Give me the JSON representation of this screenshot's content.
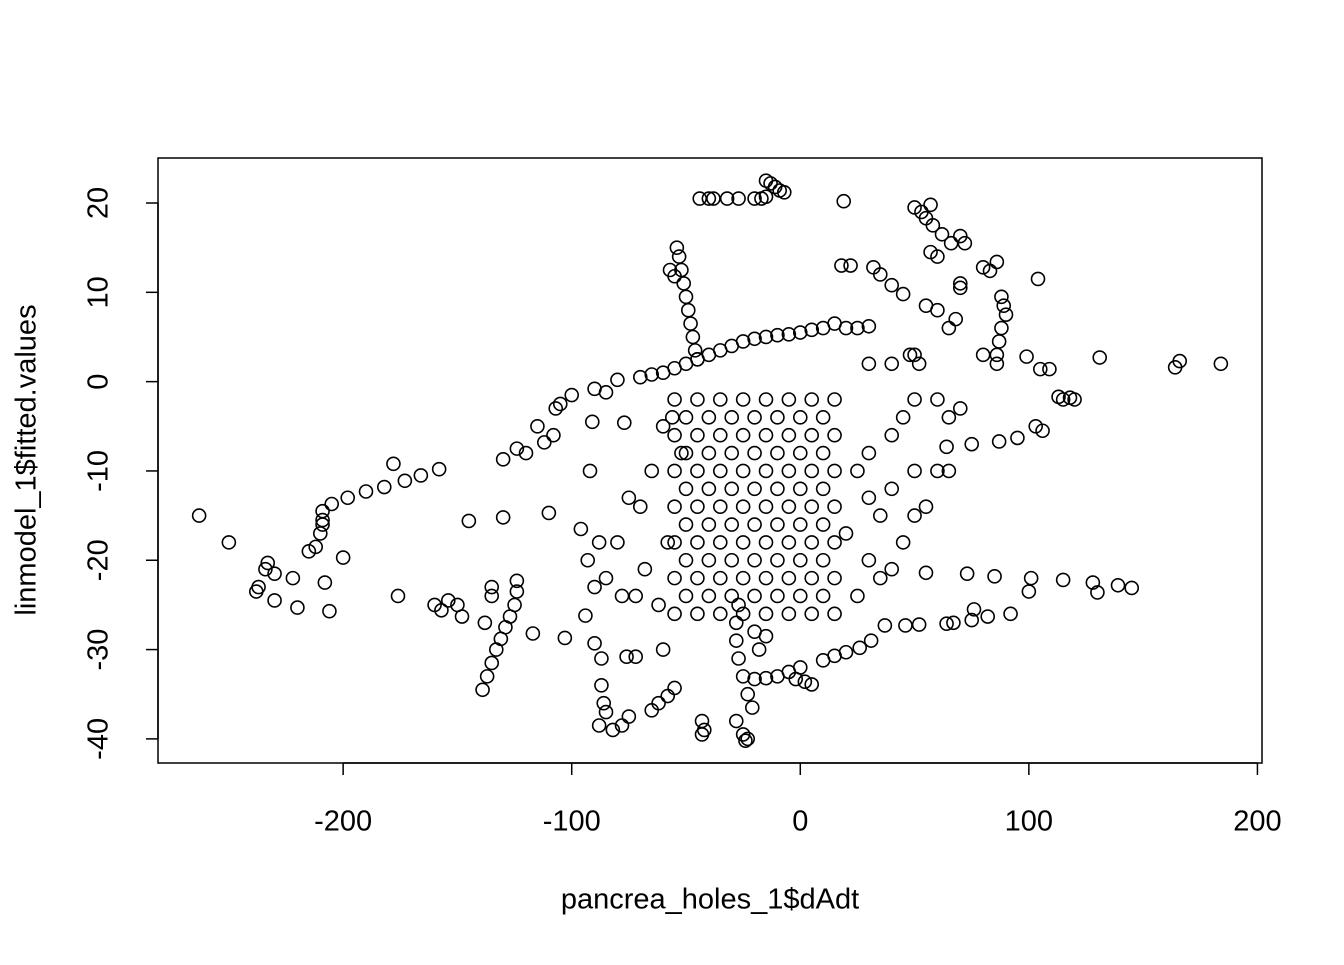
{
  "chart_data": {
    "type": "scatter",
    "x_label": "pancrea_holes_1$dAdt",
    "y_label": "linmodel_1$fitted.values",
    "xlim": [
      -281,
      202
    ],
    "ylim": [
      -42.7,
      25.04
    ],
    "xticks": [
      -200,
      -100,
      0,
      100,
      200
    ],
    "yticks": [
      -40,
      -30,
      -20,
      -10,
      0,
      10,
      20
    ],
    "color": "#000000",
    "x": [
      -263,
      -250,
      -238,
      -237,
      -233,
      -234,
      -230,
      -230,
      -222,
      -220,
      -215,
      -212,
      -210,
      -209,
      -209,
      -209,
      -208,
      -206,
      -205,
      -200,
      -198,
      -190,
      -182,
      -178,
      -176,
      -173,
      -166,
      -160,
      -157,
      -158,
      -154,
      -150,
      -148,
      -145,
      -138,
      -139,
      -137,
      -135,
      -133,
      -131,
      -129,
      -127,
      -125,
      -124,
      -124,
      -135,
      -135,
      -130,
      -130,
      -124,
      -120,
      -117,
      -115,
      -112,
      -110,
      -108,
      -107,
      -105,
      -103,
      -100,
      -96,
      -94,
      -93,
      -92,
      -91,
      -90,
      -88,
      -87,
      -87,
      -86,
      -85,
      -82,
      -78,
      -75,
      -77,
      -76,
      -72,
      -70,
      -65,
      -62,
      -58,
      -55,
      -80,
      -90,
      -85,
      -54,
      -53,
      -52,
      -51,
      -50,
      -49,
      -48,
      -47,
      -46,
      -45,
      -57,
      -55,
      -44,
      -40,
      -38,
      -32,
      -27,
      -20,
      -17,
      -15,
      -15,
      -13,
      -11,
      -9,
      -7,
      19,
      50,
      53,
      55,
      57,
      58,
      62,
      66,
      70,
      72,
      57,
      60,
      80,
      83,
      86,
      104,
      70,
      70,
      88,
      89,
      90,
      88,
      87,
      86,
      86,
      99,
      105,
      109,
      131,
      164,
      166,
      184,
      113,
      115,
      118,
      120,
      103,
      106,
      95,
      87,
      75,
      64,
      80,
      65,
      68,
      60,
      55,
      45,
      40,
      35,
      32,
      22,
      18,
      30,
      25,
      20,
      15,
      10,
      5,
      0,
      -5,
      -10,
      -15,
      -20,
      -25,
      -30,
      -35,
      -40,
      -45,
      -50,
      -55,
      -60,
      -65,
      55,
      73,
      85,
      101,
      115,
      128,
      130,
      139,
      145,
      100,
      92,
      82,
      76,
      75,
      67,
      64,
      52,
      46,
      37,
      31,
      26,
      20,
      15,
      10,
      5,
      2,
      -2,
      0,
      -5,
      -10,
      -15,
      -20,
      -43,
      -42,
      -43,
      -25,
      -24,
      -23,
      -28,
      -21,
      -23,
      -25,
      -27,
      -28,
      -28,
      -27,
      -20,
      -18,
      -15,
      30,
      35,
      40,
      45,
      50,
      55,
      25,
      30,
      40,
      45,
      50,
      60,
      65,
      70,
      35,
      20,
      25,
      30,
      40,
      50,
      60,
      65,
      30,
      40,
      50,
      52,
      48,
      -60,
      -65,
      -70,
      -75,
      -78,
      -72,
      -68,
      -80,
      -85,
      -88,
      -90,
      -62,
      -60,
      -56,
      -52,
      -58,
      -55,
      -45,
      -35,
      -25,
      -15,
      -5,
      5,
      15,
      -55,
      -45,
      -35,
      -25,
      -15,
      -5,
      5,
      15,
      -55,
      -45,
      -35,
      -25,
      -15,
      -5,
      5,
      15,
      -55,
      -45,
      -35,
      -25,
      -15,
      -5,
      5,
      15,
      -55,
      -45,
      -35,
      -25,
      -15,
      -5,
      5,
      15,
      -55,
      -45,
      -35,
      -25,
      -15,
      -5,
      5,
      15,
      -55,
      -45,
      -35,
      -25,
      -15,
      -5,
      5,
      15,
      -50,
      -40,
      -30,
      -20,
      -10,
      0,
      10,
      -50,
      -40,
      -30,
      -20,
      -10,
      0,
      10,
      -50,
      -40,
      -30,
      -20,
      -10,
      0,
      10,
      -50,
      -40,
      -30,
      -20,
      -10,
      0,
      10,
      -50,
      -40,
      -30,
      -20,
      -10,
      0,
      10,
      -50,
      -40,
      -30,
      -20,
      -10,
      0,
      10
    ],
    "values": [
      -15,
      -18,
      -23.5,
      -23,
      -20.3,
      -21,
      -21.5,
      -24.5,
      -22,
      -25.3,
      -19,
      -18.5,
      -17,
      -16,
      -15.5,
      -14.5,
      -22.5,
      -25.7,
      -13.7,
      -19.7,
      -13,
      -12.3,
      -11.8,
      -9.2,
      -24,
      -11.1,
      -10.5,
      -25,
      -25.6,
      -9.8,
      -24.5,
      -25,
      -26.3,
      -15.6,
      -27,
      -34.5,
      -33,
      -31.5,
      -30,
      -28.8,
      -27.5,
      -26.3,
      -25,
      -23.5,
      -22.3,
      -23,
      -24,
      -8.7,
      -15.2,
      -7.5,
      -8,
      -28.2,
      -5,
      -6.8,
      -14.7,
      -6,
      -3,
      -2.5,
      -28.7,
      -1.5,
      -16.5,
      -26.2,
      -20,
      -10,
      -4.5,
      -29.3,
      -38.5,
      -31,
      -34,
      -36,
      -37,
      -39,
      -38.5,
      -37.5,
      -4.6,
      -30.8,
      -30.8,
      0.5,
      -36.8,
      -36,
      -35.2,
      -34.3,
      0.2,
      -0.8,
      -1.2,
      15,
      14,
      12.5,
      11,
      9.5,
      8,
      6.5,
      5,
      3.5,
      2.5,
      12.5,
      11.8,
      20.5,
      20.5,
      20.5,
      20.5,
      20.5,
      20.5,
      20.5,
      20.7,
      22.5,
      22.2,
      21.8,
      21.4,
      21.2,
      20.2,
      19.5,
      19,
      18.3,
      19.8,
      17.5,
      16.5,
      15.5,
      16.3,
      15.5,
      14.5,
      14,
      12.8,
      12.4,
      13.4,
      11.5,
      11,
      10.5,
      9.5,
      8.5,
      7.5,
      6,
      4.5,
      3,
      2,
      2.8,
      1.4,
      1.4,
      2.7,
      1.6,
      2.3,
      2,
      -1.7,
      -2,
      -1.8,
      -2,
      -5,
      -5.5,
      -6.3,
      -6.7,
      -7,
      -7.3,
      3,
      6,
      7,
      8,
      8.5,
      9.8,
      10.8,
      12,
      12.8,
      13,
      13,
      6.2,
      6,
      6,
      6.5,
      6,
      5.8,
      5.5,
      5.3,
      5.2,
      5,
      4.8,
      4.5,
      4,
      3.5,
      3,
      2.5,
      2,
      1.5,
      1,
      0.8,
      -21.4,
      -21.5,
      -21.8,
      -22,
      -22.2,
      -22.5,
      -23.6,
      -22.8,
      -23.1,
      -23.5,
      -26,
      -26.3,
      -25.5,
      -26.7,
      -27,
      -27.1,
      -27.2,
      -27.3,
      -27.3,
      -29,
      -29.8,
      -30.3,
      -30.7,
      -31.2,
      -33.9,
      -33.6,
      -33.3,
      -32,
      -32.5,
      -33,
      -33.2,
      -33.3,
      -38,
      -39,
      -39.5,
      -39.5,
      -40.2,
      -40,
      -38,
      -36.5,
      -35,
      -33,
      -31,
      -29,
      -27,
      -25,
      -28,
      -30,
      -28.5,
      -20,
      -22,
      -21,
      -18,
      -15,
      -14,
      -10,
      -8,
      -6,
      -4,
      -2,
      -2,
      -4,
      -3,
      -15,
      -17,
      -24,
      -13,
      -12,
      -10,
      -10,
      -10,
      2,
      2,
      3,
      2,
      3,
      -5,
      -10,
      -14,
      -13,
      -24,
      -24,
      -21,
      -18,
      -22,
      -18,
      -23,
      -25,
      -30,
      -4,
      -8,
      -18,
      -26,
      -26,
      -26,
      -26,
      -26,
      -26,
      -26,
      -26,
      -22,
      -22,
      -22,
      -22,
      -22,
      -22,
      -22,
      -22,
      -18,
      -18,
      -18,
      -18,
      -18,
      -18,
      -18,
      -18,
      -14,
      -14,
      -14,
      -14,
      -14,
      -14,
      -14,
      -14,
      -10,
      -10,
      -10,
      -10,
      -10,
      -10,
      -10,
      -10,
      -6,
      -6,
      -6,
      -6,
      -6,
      -6,
      -6,
      -6,
      -2,
      -2,
      -2,
      -2,
      -2,
      -2,
      -2,
      -2,
      -24,
      -24,
      -24,
      -24,
      -24,
      -24,
      -24,
      -20,
      -20,
      -20,
      -20,
      -20,
      -20,
      -20,
      -16,
      -16,
      -16,
      -16,
      -16,
      -16,
      -16,
      -12,
      -12,
      -12,
      -12,
      -12,
      -12,
      -12,
      -8,
      -8,
      -8,
      -8,
      -8,
      -8,
      -8,
      -4,
      -4,
      -4,
      -4,
      -4,
      -4,
      -4
    ]
  }
}
